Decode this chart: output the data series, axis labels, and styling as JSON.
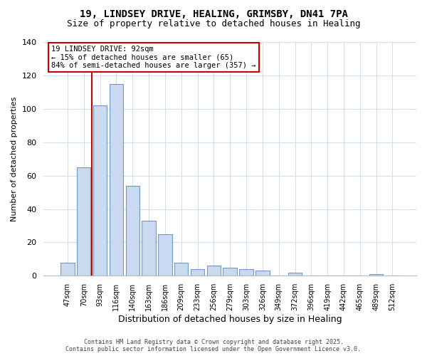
{
  "title_line1": "19, LINDSEY DRIVE, HEALING, GRIMSBY, DN41 7PA",
  "title_line2": "Size of property relative to detached houses in Healing",
  "xlabel": "Distribution of detached houses by size in Healing",
  "ylabel": "Number of detached properties",
  "bar_labels": [
    "47sqm",
    "70sqm",
    "93sqm",
    "116sqm",
    "140sqm",
    "163sqm",
    "186sqm",
    "209sqm",
    "233sqm",
    "256sqm",
    "279sqm",
    "303sqm",
    "326sqm",
    "349sqm",
    "372sqm",
    "396sqm",
    "419sqm",
    "442sqm",
    "465sqm",
    "489sqm",
    "512sqm"
  ],
  "bar_values": [
    8,
    65,
    102,
    115,
    54,
    33,
    25,
    8,
    4,
    6,
    5,
    4,
    3,
    0,
    2,
    0,
    0,
    0,
    0,
    1,
    0
  ],
  "bar_fill_color": "#c8d9f0",
  "bar_edge_color": "#7399c6",
  "vline_x_index": 2,
  "vline_color": "#cc0000",
  "annotation_line1": "19 LINDSEY DRIVE: 92sqm",
  "annotation_line2": "← 15% of detached houses are smaller (65)",
  "annotation_line3": "84% of semi-detached houses are larger (357) →",
  "annotation_box_color": "#ffffff",
  "annotation_border_color": "#cc0000",
  "ylim": [
    0,
    140
  ],
  "yticks": [
    0,
    20,
    40,
    60,
    80,
    100,
    120,
    140
  ],
  "footer_line1": "Contains HM Land Registry data © Crown copyright and database right 2025.",
  "footer_line2": "Contains public sector information licensed under the Open Government Licence v3.0.",
  "background_color": "#ffffff",
  "grid_color": "#d0e0f0"
}
